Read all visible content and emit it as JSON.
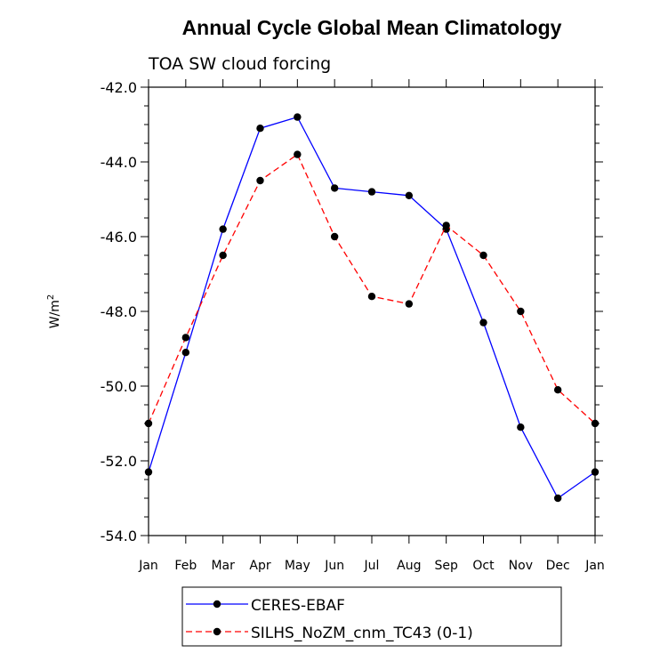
{
  "chart_data": {
    "type": "line",
    "title": "Annual Cycle Global Mean Climatology",
    "subtitle": "TOA SW cloud forcing",
    "ylabel": "W/m",
    "ylabel_superscript": "2",
    "ylim": [
      -54.0,
      -42.0
    ],
    "yticks": [
      "-42.0",
      "-44.0",
      "-46.0",
      "-48.0",
      "-50.0",
      "-52.0",
      "-54.0"
    ],
    "categories": [
      "Jan",
      "Feb",
      "Mar",
      "Apr",
      "May",
      "Jun",
      "Jul",
      "Aug",
      "Sep",
      "Oct",
      "Nov",
      "Dec",
      "Jan"
    ],
    "legend_position": "bottom-center",
    "series": [
      {
        "name": "CERES-EBAF",
        "color": "#0000ff",
        "line_style": "solid",
        "values": [
          -52.3,
          -49.1,
          -45.8,
          -43.1,
          -42.8,
          -44.7,
          -44.8,
          -44.9,
          -45.8,
          -48.3,
          -51.1,
          -53.0,
          -52.3
        ]
      },
      {
        "name": "SILHS_NoZM_cnm_TC43 (0-1)",
        "color": "#ff0000",
        "line_style": "dashed",
        "values": [
          -51.0,
          -48.7,
          -46.5,
          -44.5,
          -43.8,
          -46.0,
          -47.6,
          -47.8,
          -45.7,
          -46.5,
          -48.0,
          -50.1,
          -51.0
        ]
      }
    ]
  }
}
